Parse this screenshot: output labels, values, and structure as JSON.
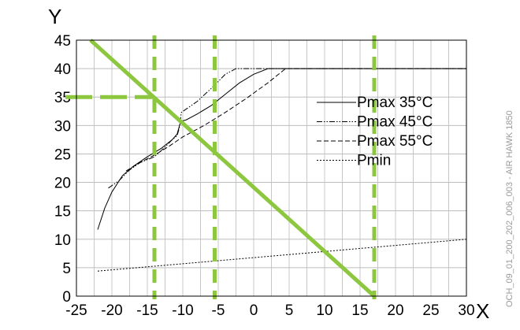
{
  "chart_data": {
    "type": "line",
    "xlabel": "X",
    "ylabel": "Y",
    "xlim": [
      -25,
      30
    ],
    "ylim": [
      0,
      45
    ],
    "x_ticks": [
      "-25",
      "-20",
      "-15",
      "-10",
      "-5",
      "0",
      "5",
      "10",
      "15",
      "20",
      "25",
      "30"
    ],
    "y_ticks": [
      "0",
      "5",
      "10",
      "15",
      "20",
      "25",
      "30",
      "35",
      "40",
      "45"
    ],
    "grid": true,
    "legend_position": "right-middle",
    "series": [
      {
        "name": "Pmax 35°C",
        "style": "solid",
        "color": "#000000",
        "points": [
          [
            -22,
            11.7
          ],
          [
            -21,
            15.5
          ],
          [
            -20,
            18.3
          ],
          [
            -18.5,
            21.2
          ],
          [
            -17,
            22.8
          ],
          [
            -15,
            24.5
          ],
          [
            -13,
            26
          ],
          [
            -11.5,
            27.5
          ],
          [
            -10.8,
            28.5
          ],
          [
            -10.3,
            30.7
          ],
          [
            -9.5,
            31
          ],
          [
            -8,
            32
          ],
          [
            -6,
            33.5
          ],
          [
            -4,
            35.5
          ],
          [
            -2,
            37.5
          ],
          [
            0,
            39
          ],
          [
            2,
            40
          ],
          [
            30,
            40
          ]
        ]
      },
      {
        "name": "Pmax 45°C",
        "style": "dash-dot-dot",
        "color": "#000000",
        "points": [
          [
            -20.5,
            19
          ],
          [
            -19,
            20.3
          ],
          [
            -17.5,
            22.2
          ],
          [
            -16,
            23.5
          ],
          [
            -14,
            24.5
          ],
          [
            -12.5,
            26.2
          ],
          [
            -11.5,
            27.5
          ],
          [
            -10.8,
            28.2
          ],
          [
            -10.5,
            29.5
          ],
          [
            -10.2,
            32.3
          ],
          [
            -8,
            34.2
          ],
          [
            -6,
            36.5
          ],
          [
            -4,
            39
          ],
          [
            -2.5,
            40
          ],
          [
            30,
            40
          ]
        ]
      },
      {
        "name": "Pmax 55°C",
        "style": "dashed",
        "color": "#000000",
        "points": [
          [
            -18,
            22
          ],
          [
            -16,
            23.5
          ],
          [
            -14,
            24.8
          ],
          [
            -12,
            26.3
          ],
          [
            -10,
            28
          ],
          [
            -7,
            30
          ],
          [
            -4,
            32.3
          ],
          [
            -1,
            34.8
          ],
          [
            2,
            37.5
          ],
          [
            4.5,
            40
          ],
          [
            30,
            40
          ]
        ]
      },
      {
        "name": "Pmin",
        "style": "dotted",
        "color": "#000000",
        "points": [
          [
            -22,
            4.4
          ],
          [
            30,
            10
          ]
        ]
      }
    ],
    "overlays": {
      "color": "#8dc63f",
      "diagonal_line": [
        [
          -23,
          45
        ],
        [
          17,
          0
        ]
      ],
      "vertical_dashed_x": [
        -14,
        -5.5,
        17
      ],
      "horizontal_dashed": {
        "y": 35,
        "x_from": -25,
        "x_to": -14
      }
    },
    "watermark": "OCH_09_01_200_202_006_003 - AIR HAWK 1850"
  }
}
